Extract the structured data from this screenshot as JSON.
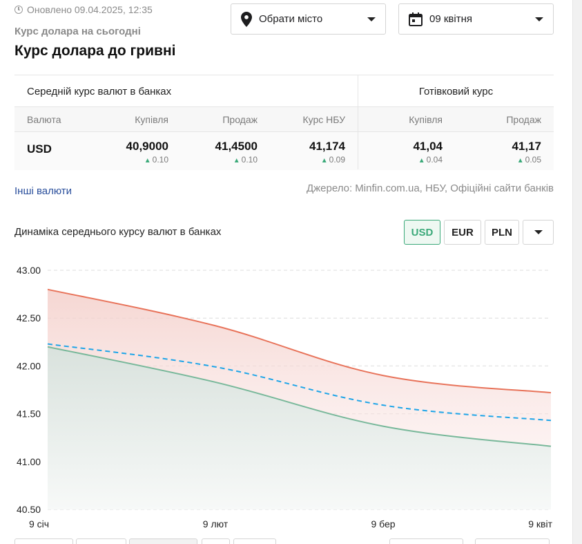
{
  "header": {
    "updated": "Оновлено 09.04.2025, 12:35",
    "subtitle": "Курс долара на сьогодні",
    "title": "Курс долара до гривні"
  },
  "controls": {
    "city_placeholder": "Обрати місто",
    "date_value": "09 квітня"
  },
  "rates_table": {
    "group_bank": "Середній курс валют в банках",
    "group_cash": "Готівковий курс",
    "columns": {
      "currency": "Валюта",
      "buy": "Купівля",
      "sell": "Продаж",
      "nbu": "Курс НБУ",
      "cash_buy": "Купівля",
      "cash_sell": "Продаж"
    },
    "row": {
      "currency": "USD",
      "buy": "40,9000",
      "buy_change": "0.10",
      "sell": "41,4500",
      "sell_change": "0.10",
      "nbu": "41,174",
      "nbu_change": "0.09",
      "cash_buy": "41,04",
      "cash_buy_change": "0.04",
      "cash_sell": "41,17",
      "cash_sell_change": "0.05"
    },
    "change_icon": "triangle-up-icon",
    "change_color": "#3aa979"
  },
  "links": {
    "other_currencies": "Інші валюти",
    "source": "Джерело: Minfin.com.ua, НБУ, Офіційні сайти банків"
  },
  "chart_section": {
    "title": "Динаміка середнього курсу валют в банках",
    "currency_buttons": [
      "USD",
      "EUR",
      "PLN"
    ],
    "active_currency": "USD",
    "accent_color": "#3aa979"
  },
  "chart_data": {
    "type": "line",
    "ylim": [
      40.5,
      43.0
    ],
    "yticks": [
      "43.00",
      "42.50",
      "42.00",
      "41.50",
      "41.00",
      "40.50"
    ],
    "ytick_values": [
      43.0,
      42.5,
      42.0,
      41.5,
      41.0,
      40.5
    ],
    "xtick_labels": [
      "9 січ",
      "9 лют",
      "9 бер",
      "9 квіт"
    ],
    "x": [
      "9 січ",
      "9 лют",
      "9 бер",
      "9 квіт"
    ],
    "grid": true,
    "series": [
      {
        "values": [
          42.8,
          42.42,
          41.9,
          41.72
        ],
        "color": "#e8735a",
        "fill": "#f6d6d2",
        "style": "solid"
      },
      {
        "values": [
          42.23,
          41.99,
          41.59,
          41.43
        ],
        "color": "#1ea5e8",
        "style": "dashed"
      },
      {
        "values": [
          42.2,
          41.83,
          41.37,
          41.16
        ],
        "color": "#78b89a",
        "fill": "#dfe6e2",
        "style": "solid"
      }
    ]
  }
}
